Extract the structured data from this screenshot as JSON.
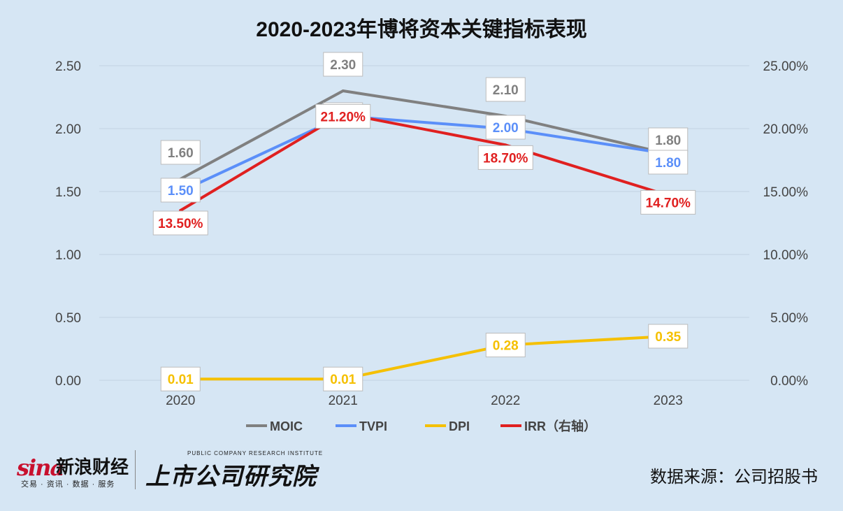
{
  "chart_data": {
    "type": "line",
    "title": "2020-2023年博将资本关键指标表现",
    "categories": [
      "2020",
      "2021",
      "2022",
      "2023"
    ],
    "y_left": {
      "min": 0,
      "max": 2.5,
      "ticks": [
        "0.00",
        "0.50",
        "1.00",
        "1.50",
        "2.00",
        "2.50"
      ]
    },
    "y_right": {
      "min": 0,
      "max": 25,
      "ticks": [
        "0.00%",
        "5.00%",
        "10.00%",
        "15.00%",
        "20.00%",
        "25.00%"
      ]
    },
    "grid": true,
    "legend_position": "bottom",
    "series": [
      {
        "name": "MOIC",
        "axis": "left",
        "color": "#808080",
        "values": [
          1.6,
          2.3,
          2.1,
          1.8
        ],
        "labels": [
          "1.60",
          "2.30",
          "2.10",
          "1.80"
        ]
      },
      {
        "name": "TVPI",
        "axis": "left",
        "color": "#5b8ff9",
        "values": [
          1.5,
          2.1,
          2.0,
          1.8
        ],
        "labels": [
          "1.50",
          "2.10",
          "2.00",
          "1.80"
        ]
      },
      {
        "name": "DPI",
        "axis": "left",
        "color": "#f5c000",
        "values": [
          0.01,
          0.01,
          0.28,
          0.35
        ],
        "labels": [
          "0.01",
          "0.01",
          "0.28",
          "0.35"
        ]
      },
      {
        "name": "IRR（右轴）",
        "axis": "right",
        "color": "#e02020",
        "values": [
          13.5,
          21.2,
          18.7,
          14.7
        ],
        "labels": [
          "13.50%",
          "21.20%",
          "18.70%",
          "14.70%"
        ]
      }
    ]
  },
  "footer": {
    "sina_logo": "sina",
    "sina_name": "新浪财经",
    "sina_sub": "交易 · 资讯 · 数据 · 服务",
    "institute_en": "PUBLIC COMPANY RESEARCH INSTITUTE",
    "institute_name": "上市公司研究院",
    "source": "数据来源：公司招股书"
  }
}
